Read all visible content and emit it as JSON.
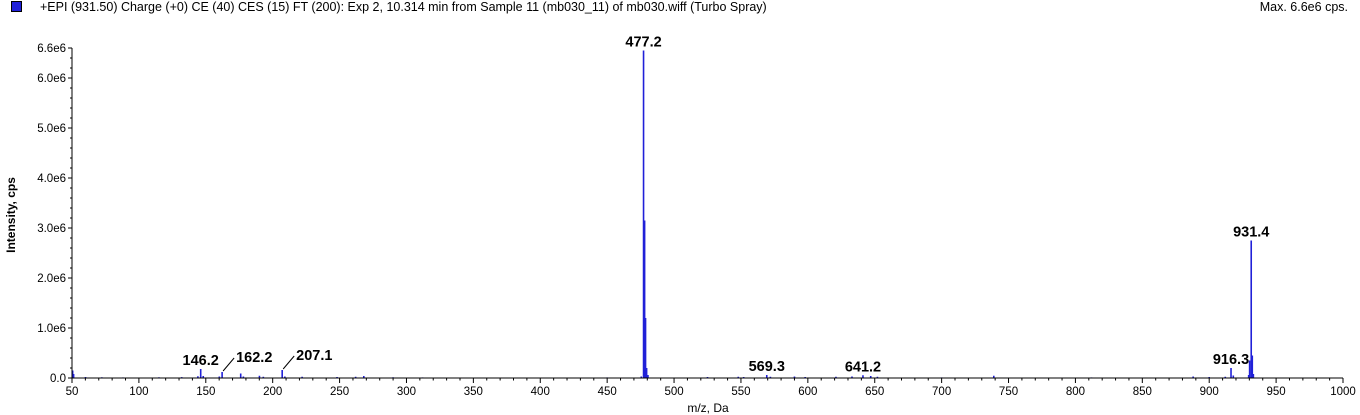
{
  "header": {
    "title": "+EPI (931.50) Charge (+0) CE (40) CES (15) FT (200): Exp 2, 10.314 min from Sample 11 (mb030_11) of mb030.wiff (Turbo Spray)",
    "max_label": "Max. 6.6e6 cps."
  },
  "colors": {
    "series": "#2020d8",
    "axis": "#000000"
  },
  "chart_data": {
    "type": "bar",
    "title": "+EPI (931.50) Charge (+0) CE (40) CES (15) FT (200): Exp 2, 10.314 min from Sample 11 (mb030_11) of mb030.wiff (Turbo Spray)",
    "xlabel": "m/z, Da",
    "ylabel": "Intensity, cps",
    "xlim": [
      50,
      1000
    ],
    "ylim": [
      0,
      6600000.0
    ],
    "x_ticks": [
      50,
      100,
      150,
      200,
      250,
      300,
      350,
      400,
      450,
      500,
      550,
      600,
      650,
      700,
      750,
      800,
      850,
      900,
      950,
      1000
    ],
    "x_tick_labels": [
      "50",
      "100",
      "150",
      "200",
      "250",
      "300",
      "350",
      "400",
      "450",
      "500",
      "550",
      "600",
      "650",
      "700",
      "750",
      "800",
      "850",
      "900",
      "950",
      "1000"
    ],
    "y_ticks": [
      0,
      1000000.0,
      2000000.0,
      3000000.0,
      4000000.0,
      5000000.0,
      6000000.0,
      6600000.0
    ],
    "y_tick_labels": [
      "0.0",
      "1.0e6",
      "2.0e6",
      "3.0e6",
      "4.0e6",
      "5.0e6",
      "6.0e6",
      "6.6e6"
    ],
    "grid": false,
    "peaks": [
      {
        "mz": 50.5,
        "intensity": 150000
      },
      {
        "mz": 51.2,
        "intensity": 80000
      },
      {
        "mz": 60.1,
        "intensity": 20000
      },
      {
        "mz": 72.3,
        "intensity": 15000
      },
      {
        "mz": 88.1,
        "intensity": 12000
      },
      {
        "mz": 115.0,
        "intensity": 15000
      },
      {
        "mz": 132.0,
        "intensity": 18000
      },
      {
        "mz": 144.1,
        "intensity": 35000
      },
      {
        "mz": 146.2,
        "intensity": 180000
      },
      {
        "mz": 148.1,
        "intensity": 40000
      },
      {
        "mz": 160.1,
        "intensity": 30000
      },
      {
        "mz": 162.2,
        "intensity": 120000
      },
      {
        "mz": 176.1,
        "intensity": 90000
      },
      {
        "mz": 178.1,
        "intensity": 30000
      },
      {
        "mz": 190.1,
        "intensity": 45000
      },
      {
        "mz": 193.0,
        "intensity": 25000
      },
      {
        "mz": 207.1,
        "intensity": 160000
      },
      {
        "mz": 209.1,
        "intensity": 30000
      },
      {
        "mz": 222.0,
        "intensity": 25000
      },
      {
        "mz": 248.1,
        "intensity": 20000
      },
      {
        "mz": 262.0,
        "intensity": 25000
      },
      {
        "mz": 268.1,
        "intensity": 40000
      },
      {
        "mz": 290.0,
        "intensity": 15000
      },
      {
        "mz": 312.0,
        "intensity": 12000
      },
      {
        "mz": 350.0,
        "intensity": 10000
      },
      {
        "mz": 400.0,
        "intensity": 10000
      },
      {
        "mz": 450.0,
        "intensity": 12000
      },
      {
        "mz": 475.5,
        "intensity": 30000
      },
      {
        "mz": 477.2,
        "intensity": 6550000
      },
      {
        "mz": 478.0,
        "intensity": 3150000
      },
      {
        "mz": 478.7,
        "intensity": 1200000
      },
      {
        "mz": 479.5,
        "intensity": 200000
      },
      {
        "mz": 480.5,
        "intensity": 60000
      },
      {
        "mz": 525.0,
        "intensity": 20000
      },
      {
        "mz": 548.0,
        "intensity": 25000
      },
      {
        "mz": 552.0,
        "intensity": 20000
      },
      {
        "mz": 569.3,
        "intensity": 60000
      },
      {
        "mz": 572.0,
        "intensity": 25000
      },
      {
        "mz": 590.0,
        "intensity": 30000
      },
      {
        "mz": 598.0,
        "intensity": 20000
      },
      {
        "mz": 621.0,
        "intensity": 25000
      },
      {
        "mz": 633.0,
        "intensity": 30000
      },
      {
        "mz": 641.2,
        "intensity": 55000
      },
      {
        "mz": 647.0,
        "intensity": 40000
      },
      {
        "mz": 652.0,
        "intensity": 25000
      },
      {
        "mz": 700.0,
        "intensity": 12000
      },
      {
        "mz": 739.0,
        "intensity": 45000
      },
      {
        "mz": 760.0,
        "intensity": 10000
      },
      {
        "mz": 812.0,
        "intensity": 12000
      },
      {
        "mz": 888.0,
        "intensity": 30000
      },
      {
        "mz": 900.0,
        "intensity": 20000
      },
      {
        "mz": 912.0,
        "intensity": 25000
      },
      {
        "mz": 916.3,
        "intensity": 200000
      },
      {
        "mz": 918.0,
        "intensity": 50000
      },
      {
        "mz": 929.5,
        "intensity": 60000
      },
      {
        "mz": 930.2,
        "intensity": 350000
      },
      {
        "mz": 931.4,
        "intensity": 2750000
      },
      {
        "mz": 932.2,
        "intensity": 450000
      },
      {
        "mz": 933.0,
        "intensity": 80000
      }
    ],
    "annotations": [
      {
        "label": "146.2",
        "mz": 146.2,
        "intensity": 180000
      },
      {
        "label": "162.2",
        "mz": 162.2,
        "intensity": 120000,
        "leader": true
      },
      {
        "label": "207.1",
        "mz": 207.1,
        "intensity": 160000,
        "leader": true
      },
      {
        "label": "477.2",
        "mz": 477.2,
        "intensity": 6550000
      },
      {
        "label": "569.3",
        "mz": 569.3,
        "intensity": 60000
      },
      {
        "label": "641.2",
        "mz": 641.2,
        "intensity": 55000
      },
      {
        "label": "916.3",
        "mz": 916.3,
        "intensity": 200000
      },
      {
        "label": "931.4",
        "mz": 931.4,
        "intensity": 2750000
      }
    ]
  }
}
